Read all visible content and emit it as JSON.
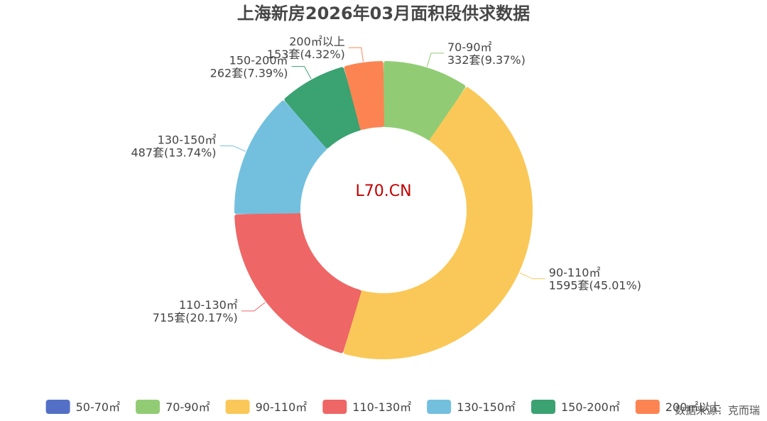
{
  "chart_data": {
    "type": "pie",
    "donut": true,
    "title": "上海新房2026年03月面积段供求数据",
    "watermark": "L70.CN",
    "source": "数据来源：克而瑞",
    "unit": "套",
    "slices": [
      {
        "name": "50-70㎡",
        "value": 0,
        "percent": "0%",
        "color": "#5470c6"
      },
      {
        "name": "70-90㎡",
        "value": 332,
        "percent": "9.37%",
        "color": "#91cc75"
      },
      {
        "name": "90-110㎡",
        "value": 1595,
        "percent": "45.01%",
        "color": "#fac858"
      },
      {
        "name": "110-130㎡",
        "value": 715,
        "percent": "20.17%",
        "color": "#ee6666"
      },
      {
        "name": "130-150㎡",
        "value": 487,
        "percent": "13.74%",
        "color": "#73c0de"
      },
      {
        "name": "150-200㎡",
        "value": 262,
        "percent": "7.39%",
        "color": "#3ba272"
      },
      {
        "name": "200㎡以上",
        "value": 153,
        "percent": "4.32%",
        "color": "#fc8452"
      }
    ],
    "legend_position": "bottom"
  }
}
